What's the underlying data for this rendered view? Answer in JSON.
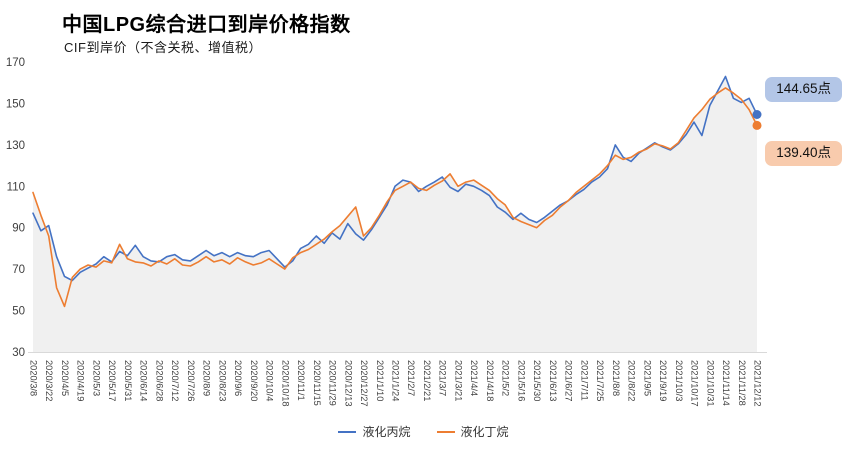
{
  "title": "中国LPG综合进口到岸价格指数",
  "subtitle": "CIF到岸价（不含关税、增值税）",
  "annotations": {
    "propane_label": "144.65点",
    "butane_label": "139.40点"
  },
  "legend": {
    "propane": "液化丙烷",
    "butane": "液化丁烷"
  },
  "colors": {
    "propane": "#4472c4",
    "butane": "#ed7d31",
    "propane_callout_bg": "#b3c6e7",
    "butane_callout_bg": "#f8cbad",
    "area_fill": "#f0f0f0",
    "axis_line": "#d9d9d9",
    "tick_text": "#3f3f3f"
  },
  "chart_data": {
    "type": "line",
    "title": "中国LPG综合进口到岸价格指数",
    "subtitle": "CIF到岸价（不含关税、增值税）",
    "ylim": [
      30,
      170
    ],
    "yticks": [
      30,
      50,
      70,
      90,
      110,
      130,
      150,
      170
    ],
    "grid": false,
    "legend_position": "bottom",
    "x": [
      "2020/3/8",
      "2020/3/15",
      "2020/3/22",
      "2020/3/29",
      "2020/4/5",
      "2020/4/12",
      "2020/4/19",
      "2020/4/26",
      "2020/5/3",
      "2020/5/10",
      "2020/5/17",
      "2020/5/24",
      "2020/5/31",
      "2020/6/7",
      "2020/6/14",
      "2020/6/21",
      "2020/6/28",
      "2020/7/5",
      "2020/7/12",
      "2020/7/19",
      "2020/7/26",
      "2020/8/2",
      "2020/8/9",
      "2020/8/16",
      "2020/8/23",
      "2020/8/30",
      "2020/9/6",
      "2020/9/13",
      "2020/9/20",
      "2020/9/27",
      "2020/10/4",
      "2020/10/11",
      "2020/10/18",
      "2020/10/25",
      "2020/11/1",
      "2020/11/8",
      "2020/11/15",
      "2020/11/22",
      "2020/11/29",
      "2020/12/6",
      "2020/12/13",
      "2020/12/20",
      "2020/12/27",
      "2021/1/3",
      "2021/1/10",
      "2021/1/17",
      "2021/1/24",
      "2021/1/31",
      "2021/2/7",
      "2021/2/14",
      "2021/2/21",
      "2021/2/28",
      "2021/3/7",
      "2021/3/14",
      "2021/3/21",
      "2021/3/28",
      "2021/4/4",
      "2021/4/11",
      "2021/4/18",
      "2021/4/25",
      "2021/5/2",
      "2021/5/9",
      "2021/5/16",
      "2021/5/23",
      "2021/5/30",
      "2021/6/6",
      "2021/6/13",
      "2021/6/20",
      "2021/6/27",
      "2021/7/4",
      "2021/7/11",
      "2021/7/18",
      "2021/7/25",
      "2021/8/1",
      "2021/8/8",
      "2021/8/15",
      "2021/8/22",
      "2021/8/29",
      "2021/9/5",
      "2021/9/12",
      "2021/9/19",
      "2021/9/26",
      "2021/10/3",
      "2021/10/10",
      "2021/10/17",
      "2021/10/24",
      "2021/10/31",
      "2021/11/7",
      "2021/11/14",
      "2021/11/21",
      "2021/11/28",
      "2021/12/5",
      "2021/12/12"
    ],
    "x_tick_labels": [
      "2020/3/8",
      "2020/3/22",
      "2020/4/5",
      "2020/4/19",
      "2020/5/3",
      "2020/5/17",
      "2020/5/31",
      "2020/6/14",
      "2020/6/28",
      "2020/7/12",
      "2020/7/26",
      "2020/8/9",
      "2020/8/23",
      "2020/9/6",
      "2020/9/20",
      "2020/10/4",
      "2020/10/18",
      "2020/11/1",
      "2020/11/15",
      "2020/11/29",
      "2020/12/13",
      "2020/12/27",
      "2021/1/10",
      "2021/1/24",
      "2021/2/7",
      "2021/2/21",
      "2021/3/7",
      "2021/3/21",
      "2021/4/4",
      "2021/4/18",
      "2021/5/2",
      "2021/5/16",
      "2021/5/30",
      "2021/6/13",
      "2021/6/27",
      "2021/7/11",
      "2021/7/25",
      "2021/8/8",
      "2021/8/22",
      "2021/9/5",
      "2021/9/19",
      "2021/10/3",
      "2021/10/17",
      "2021/10/31",
      "2021/11/14",
      "2021/11/28",
      "2021/12/12"
    ],
    "series": [
      {
        "name": "液化丙烷",
        "color": "#4472c4",
        "last_value_label": "144.65点",
        "values": [
          97,
          88.5,
          91,
          76,
          66.5,
          64.5,
          68.5,
          70.5,
          72.5,
          76,
          73.5,
          78.5,
          76.5,
          81.5,
          76,
          74,
          73.5,
          76,
          77,
          74.5,
          74,
          76.5,
          79,
          76.5,
          78,
          76,
          78,
          76.5,
          76,
          78,
          79,
          75,
          71,
          74,
          80,
          82,
          86,
          82.5,
          87.5,
          84.5,
          92,
          87,
          84,
          89,
          95,
          101,
          110,
          113,
          112,
          107.5,
          110,
          112,
          114.5,
          109.5,
          107.5,
          111,
          110,
          108,
          105.5,
          100,
          97.5,
          94,
          97,
          94,
          92.5,
          95,
          98,
          101,
          103,
          106,
          108.5,
          112,
          114.5,
          118.5,
          130,
          124,
          122,
          126,
          128.5,
          131,
          129,
          127.5,
          130.5,
          135,
          141,
          134.5,
          149,
          156,
          163,
          152.5,
          150.5,
          152.5,
          144.65
        ]
      },
      {
        "name": "液化丁烷",
        "color": "#ed7d31",
        "last_value_label": "139.40点",
        "values": [
          107,
          96,
          86,
          61,
          52,
          66,
          70,
          72,
          71,
          74,
          73,
          82,
          75,
          73.5,
          73,
          71.5,
          74,
          72.5,
          75,
          72,
          71.5,
          73.5,
          76,
          73.5,
          74.5,
          72.5,
          75.5,
          73.5,
          72,
          73,
          75,
          72.5,
          70,
          75.5,
          78,
          79.5,
          82,
          84.5,
          88,
          91,
          95.5,
          100,
          86,
          90,
          96,
          102.5,
          108,
          110,
          112,
          109,
          108,
          110.5,
          112.5,
          116,
          110,
          112,
          113,
          110.5,
          108,
          104,
          101,
          95,
          93,
          91.5,
          90,
          93.5,
          96,
          100,
          103,
          107,
          110,
          113,
          116,
          120,
          125,
          123,
          124,
          126.5,
          128,
          130.5,
          129.5,
          128,
          131,
          137,
          143,
          147,
          152,
          155,
          157.5,
          155,
          152,
          147,
          139.4
        ]
      }
    ]
  }
}
